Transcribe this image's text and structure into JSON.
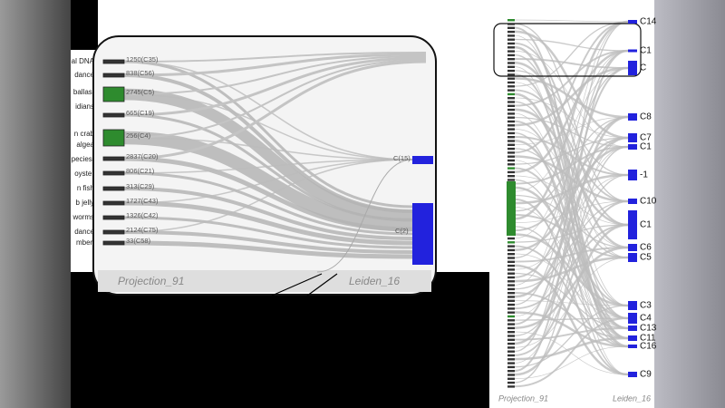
{
  "zoom": {
    "left_labels": [
      "al DNA",
      "dance",
      "ballast",
      "idians",
      "n crab",
      "algea",
      "pecies,",
      "oyster",
      "n fish",
      "b jelly",
      "worms",
      "dance",
      "mber,"
    ],
    "source_nodes": [
      "1250(C35)",
      "838(C56)",
      "2745(C5)",
      "665(C19)",
      "256(C4)",
      "2837(C20)",
      "806(C21)",
      "313(C29)",
      "1727(C43)",
      "1326(C42)",
      "2124(C75)",
      "33(C58)"
    ],
    "target_nodes": [
      "C(15)",
      "C(2)"
    ],
    "axis_left": "Projection_91",
    "axis_right": "Leiden_16"
  },
  "overview": {
    "target_labels": [
      "C14",
      "C1",
      "C",
      "C8",
      "C7",
      "C1",
      "-1",
      "C10",
      "C1",
      "C6",
      "C5",
      "C3",
      "C4",
      "C13",
      "C11",
      "C16",
      "C9"
    ],
    "axis_left": "Projection_91",
    "axis_right": "Leiden_16"
  }
}
